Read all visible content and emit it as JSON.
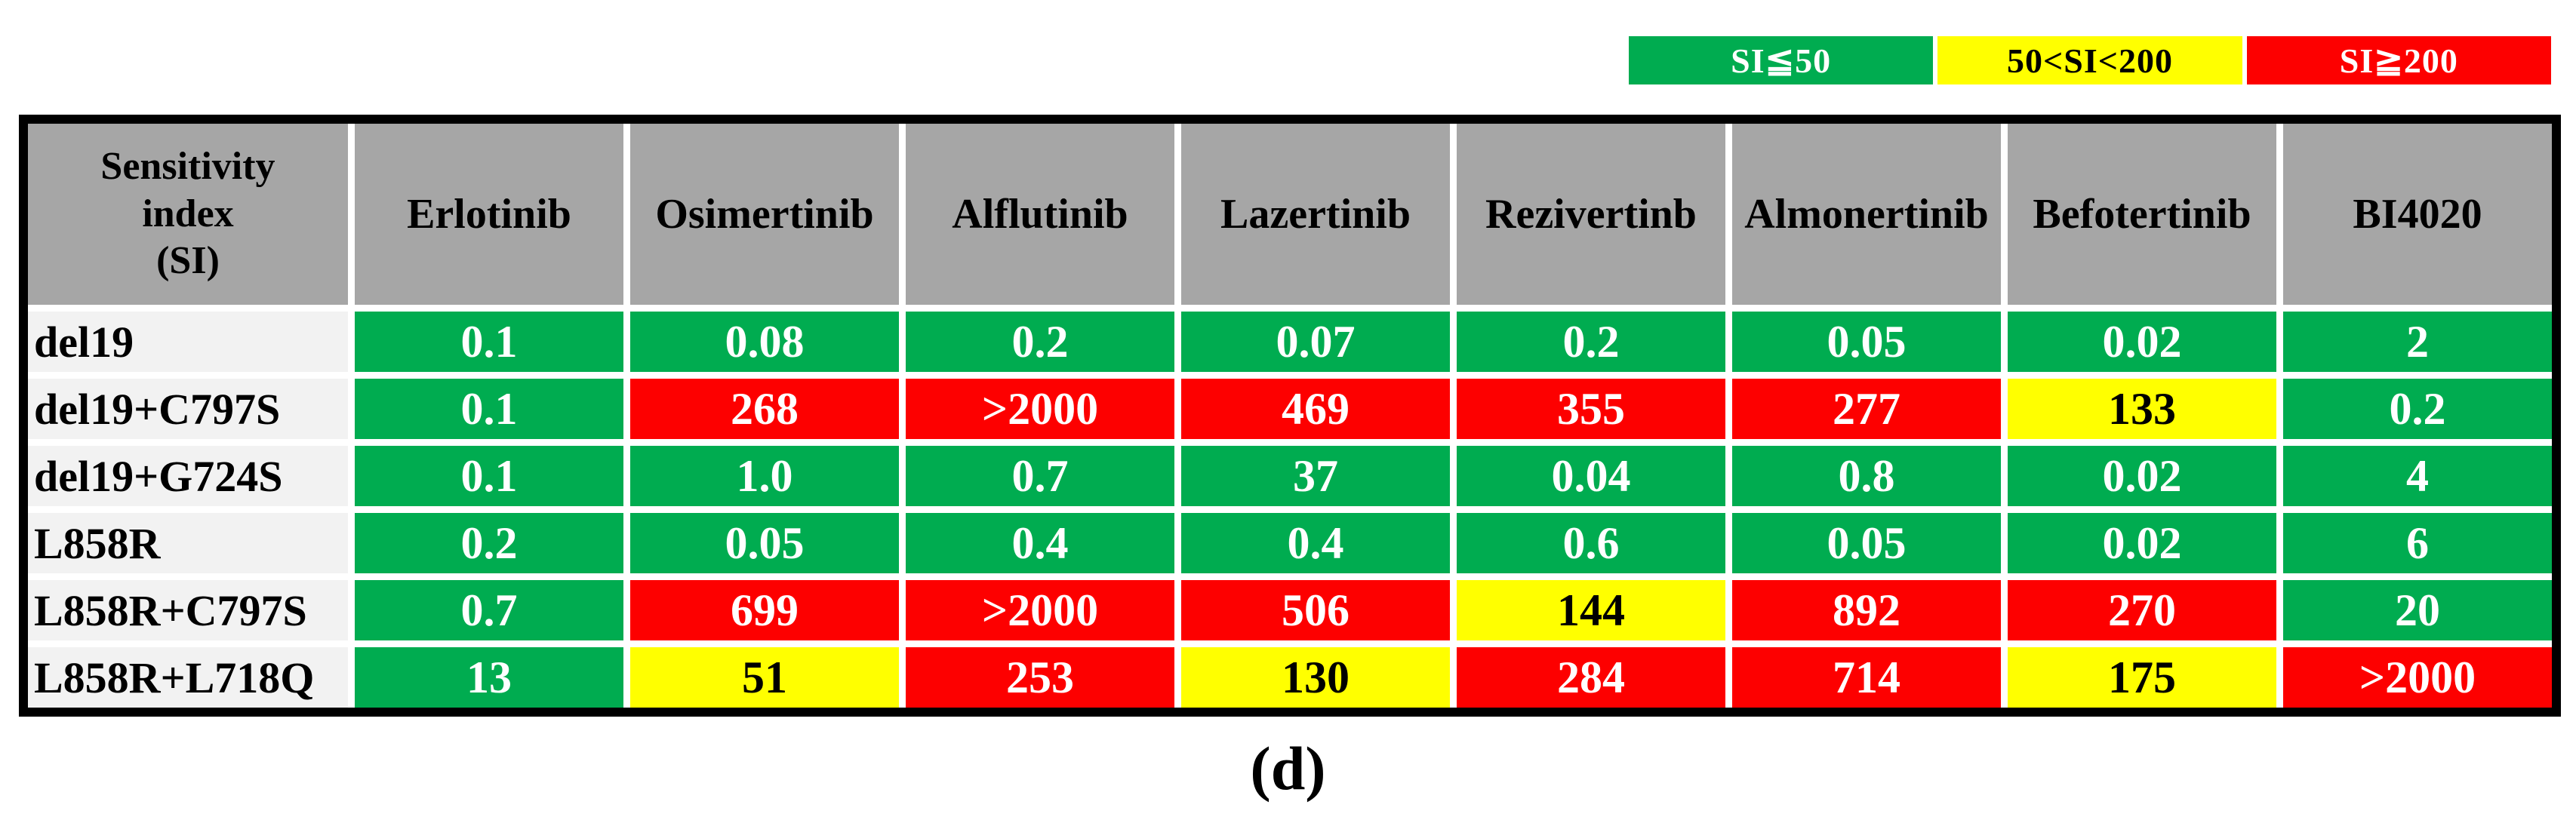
{
  "colors": {
    "green": "#00AC50",
    "yellow": "#FFFF00",
    "red": "#FD0000",
    "header_bg": "#A6A6A6",
    "label_bg": "#F2F2F2",
    "border": "#000000",
    "text_on_green": "#FFFFFF",
    "text_on_yellow": "#000000",
    "text_on_red": "#FFFFFF"
  },
  "legend": [
    {
      "label": "SI≦50",
      "color": "#00AC50",
      "text_color": "#FFFFFF"
    },
    {
      "label": "50<SI<200",
      "color": "#FFFF00",
      "text_color": "#000000"
    },
    {
      "label": "SI≧200",
      "color": "#FD0000",
      "text_color": "#FFFFFF"
    }
  ],
  "table": {
    "corner_lines": [
      "Sensitivity",
      "index",
      "(SI)"
    ],
    "corner_title": "Sensitivity index (SI)",
    "columns": [
      "Erlotinib",
      "Osimertinib",
      "Alflutinib",
      "Lazertinib",
      "Rezivertinb",
      "Almonertinib",
      "Befotertinib",
      "BI4020"
    ],
    "rows": [
      {
        "label": "del19",
        "cells": [
          {
            "value": "0.1",
            "level": "green"
          },
          {
            "value": "0.08",
            "level": "green"
          },
          {
            "value": "0.2",
            "level": "green"
          },
          {
            "value": "0.07",
            "level": "green"
          },
          {
            "value": "0.2",
            "level": "green"
          },
          {
            "value": "0.05",
            "level": "green"
          },
          {
            "value": "0.02",
            "level": "green"
          },
          {
            "value": "2",
            "level": "green"
          }
        ]
      },
      {
        "label": "del19+C797S",
        "cells": [
          {
            "value": "0.1",
            "level": "green"
          },
          {
            "value": "268",
            "level": "red"
          },
          {
            "value": ">2000",
            "level": "red"
          },
          {
            "value": "469",
            "level": "red"
          },
          {
            "value": "355",
            "level": "red"
          },
          {
            "value": "277",
            "level": "red"
          },
          {
            "value": "133",
            "level": "yellow"
          },
          {
            "value": "0.2",
            "level": "green"
          }
        ]
      },
      {
        "label": "del19+G724S",
        "cells": [
          {
            "value": "0.1",
            "level": "green"
          },
          {
            "value": "1.0",
            "level": "green"
          },
          {
            "value": "0.7",
            "level": "green"
          },
          {
            "value": "37",
            "level": "green"
          },
          {
            "value": "0.04",
            "level": "green"
          },
          {
            "value": "0.8",
            "level": "green"
          },
          {
            "value": "0.02",
            "level": "green"
          },
          {
            "value": "4",
            "level": "green"
          }
        ]
      },
      {
        "label": "L858R",
        "cells": [
          {
            "value": "0.2",
            "level": "green"
          },
          {
            "value": "0.05",
            "level": "green"
          },
          {
            "value": "0.4",
            "level": "green"
          },
          {
            "value": "0.4",
            "level": "green"
          },
          {
            "value": "0.6",
            "level": "green"
          },
          {
            "value": "0.05",
            "level": "green"
          },
          {
            "value": "0.02",
            "level": "green"
          },
          {
            "value": "6",
            "level": "green"
          }
        ]
      },
      {
        "label": "L858R+C797S",
        "cells": [
          {
            "value": "0.7",
            "level": "green"
          },
          {
            "value": "699",
            "level": "red"
          },
          {
            "value": ">2000",
            "level": "red"
          },
          {
            "value": "506",
            "level": "red"
          },
          {
            "value": "144",
            "level": "yellow"
          },
          {
            "value": "892",
            "level": "red"
          },
          {
            "value": "270",
            "level": "red"
          },
          {
            "value": "20",
            "level": "green"
          }
        ]
      },
      {
        "label": "L858R+L718Q",
        "cells": [
          {
            "value": "13",
            "level": "green"
          },
          {
            "value": "51",
            "level": "yellow"
          },
          {
            "value": "253",
            "level": "red"
          },
          {
            "value": "130",
            "level": "yellow"
          },
          {
            "value": "284",
            "level": "red"
          },
          {
            "value": "714",
            "level": "red"
          },
          {
            "value": "175",
            "level": "yellow"
          },
          {
            "value": ">2000",
            "level": "red"
          }
        ]
      }
    ]
  },
  "caption": "(d)"
}
